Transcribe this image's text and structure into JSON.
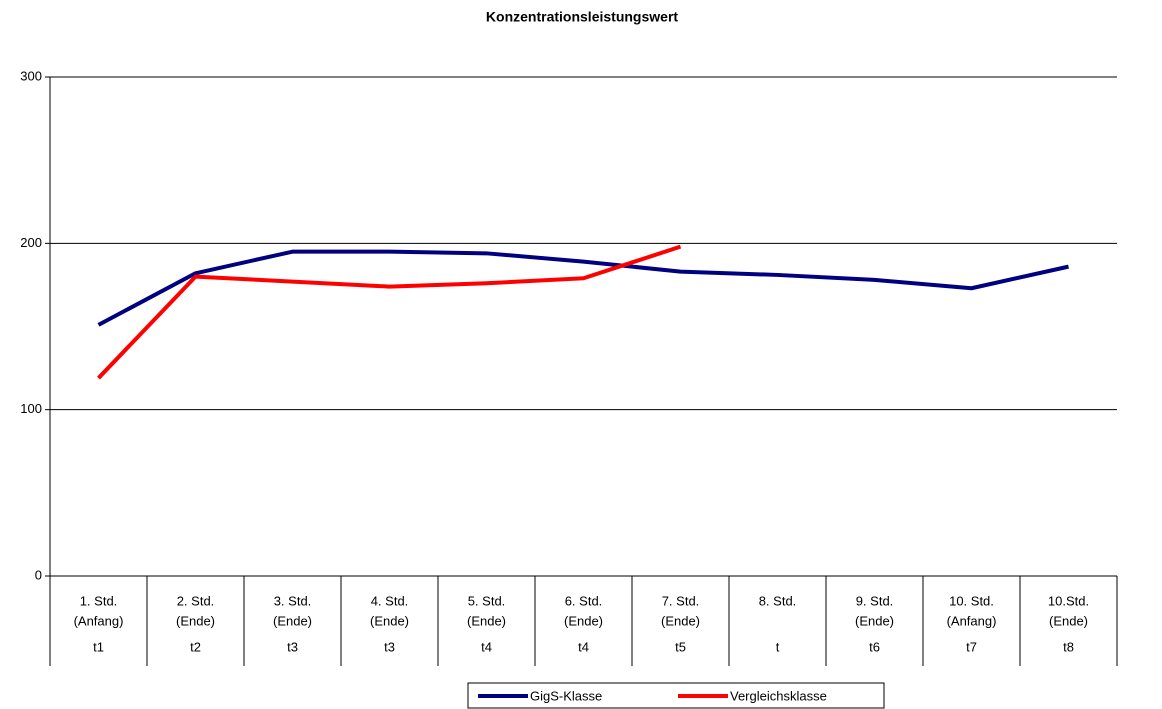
{
  "chart_data": {
    "type": "line",
    "title": "Konzentrationsleistungswert",
    "categories": [
      [
        "1. Std.",
        "(Anfang)"
      ],
      [
        "2. Std.",
        "(Ende)"
      ],
      [
        "3. Std.",
        "(Ende)"
      ],
      [
        "4. Std.",
        "(Ende)"
      ],
      [
        "5. Std.",
        "(Ende)"
      ],
      [
        "6. Std.",
        "(Ende)"
      ],
      [
        "7. Std.",
        "(Ende)"
      ],
      [
        "8. Std."
      ],
      [
        "9. Std.",
        "(Ende)"
      ],
      [
        "10. Std.",
        "(Anfang)"
      ],
      [
        "10.Std.",
        "(Ende)"
      ]
    ],
    "time_points": [
      "t1",
      "t2",
      "t3",
      "t3",
      "t4",
      "t4",
      "t5",
      "t",
      "t6",
      "t7",
      "t8"
    ],
    "series": [
      {
        "name": "GigS-Klasse",
        "color": "#000080",
        "values": [
          151,
          182,
          195,
          195,
          194,
          189,
          183,
          181,
          178,
          173,
          186
        ]
      },
      {
        "name": "Vergleichsklasse",
        "color": "#ff0000",
        "values": [
          119,
          180,
          177,
          174,
          176,
          179,
          198,
          null,
          null,
          null,
          null
        ]
      }
    ],
    "ylim": [
      0,
      300
    ],
    "yticks": [
      0,
      100,
      200,
      300
    ],
    "grid": true
  }
}
